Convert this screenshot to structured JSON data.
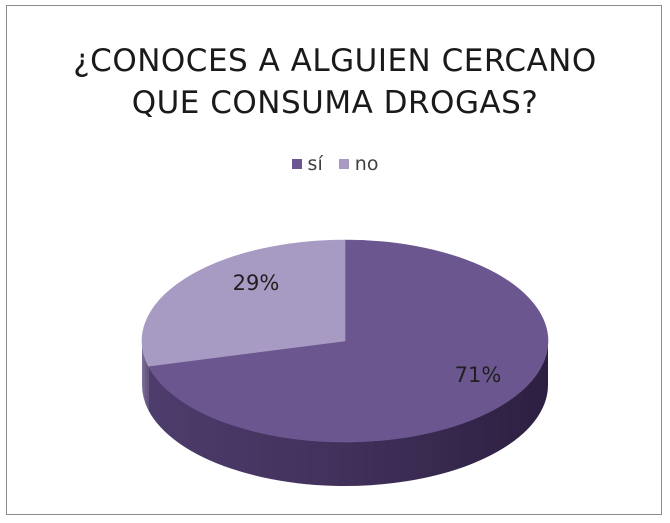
{
  "chart_data": {
    "type": "pie",
    "title_lines": [
      "¿CONOCES A ALGUIEN CERCANO",
      "QUE CONSUMA DROGAS?"
    ],
    "categories": [
      "sí",
      "no"
    ],
    "values": [
      71,
      29
    ],
    "data_labels": [
      "71%",
      "29%"
    ],
    "colors": [
      "#6c5690",
      "#a79bc3"
    ],
    "side_colors": [
      "#3d2d57",
      "#6b5d86"
    ],
    "legend_position": "top",
    "style": "3d"
  }
}
